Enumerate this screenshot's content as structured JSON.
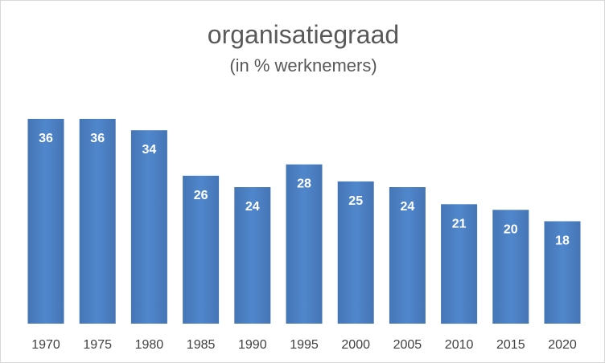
{
  "chart_data": {
    "type": "bar",
    "title": "organisatiegraad",
    "subtitle": "(in % werknemers)",
    "categories": [
      "1970",
      "1975",
      "1980",
      "1985",
      "1990",
      "1995",
      "2000",
      "2005",
      "2010",
      "2015",
      "2020"
    ],
    "values": [
      36,
      36,
      34,
      26,
      24,
      28,
      25,
      24,
      21,
      20,
      18
    ],
    "data_labels": true,
    "ylim": [
      0,
      36
    ],
    "grid": false,
    "legend": "none",
    "colors": {
      "bar": "#4a7ebb",
      "bar_light": "#5a8fd0",
      "label": "#ffffff",
      "text": "#595959"
    }
  }
}
